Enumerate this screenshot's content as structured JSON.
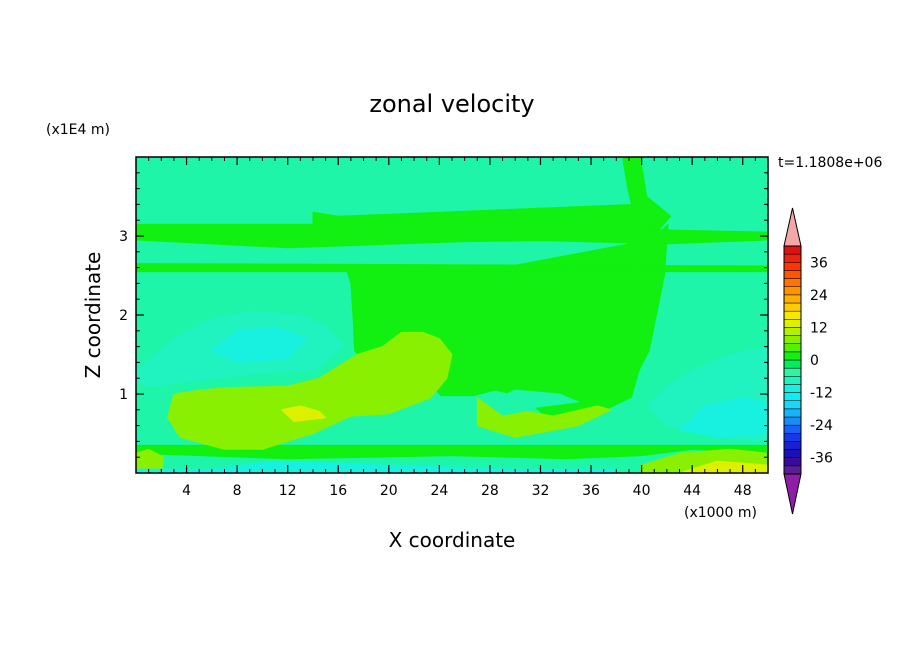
{
  "chart_data": {
    "type": "heatmap",
    "title": "zonal velocity",
    "xlabel": "X coordinate",
    "ylabel": "Z coordinate",
    "x_unit_label": "(x1000 m)",
    "y_unit_label": "(x1E4 m)",
    "time_label": "t=1.1808e+06",
    "xlim": [
      0,
      50
    ],
    "ylim": [
      0,
      4
    ],
    "x_ticks": [
      "4",
      "8",
      "12",
      "16",
      "20",
      "24",
      "28",
      "32",
      "36",
      "40",
      "44",
      "48"
    ],
    "y_ticks": [
      "1",
      "2",
      "3"
    ],
    "colorbar": {
      "levels": [
        -42,
        -39,
        -36,
        -33,
        -30,
        -27,
        -24,
        -21,
        -18,
        -15,
        -12,
        -9,
        -6,
        -3,
        0,
        3,
        6,
        9,
        12,
        15,
        18,
        21,
        24,
        27,
        30,
        33,
        36,
        39,
        42
      ],
      "colors": [
        "#5a1f96",
        "#3a0a9a",
        "#1a10b5",
        "#1820d2",
        "#1638e8",
        "#1a60f5",
        "#1a8cf8",
        "#18b4fa",
        "#1ad6fa",
        "#10ecf4",
        "#18f0e0",
        "#20f2c0",
        "#30f5a0",
        "#00ee5a",
        "#11f011",
        "#55f000",
        "#88f000",
        "#b4f000",
        "#dcf000",
        "#f8e800",
        "#ffcc00",
        "#ffb000",
        "#ff9400",
        "#ff7400",
        "#ff5400",
        "#ff3400",
        "#ee2210",
        "#e01010"
      ],
      "under_color": "#8e1ea4",
      "over_color": "#f2a8a8",
      "tick_labels": [
        "36",
        "24",
        "12",
        "0",
        "-12",
        "-24",
        "-36"
      ]
    },
    "regions": [
      {
        "value": -4,
        "color": "#1ef5a8",
        "desc": "background"
      },
      {
        "value": 0,
        "color": "#11f011",
        "points": [
          [
            14.6,
            4
          ],
          [
            39.9,
            4
          ],
          [
            40.4,
            3.5
          ],
          [
            42.3,
            3.25
          ],
          [
            40.7,
            2.95
          ],
          [
            29,
            2.6
          ],
          [
            16.7,
            2.55
          ],
          [
            17,
            2.4
          ],
          [
            17.2,
            1.9
          ],
          [
            17.3,
            1.55
          ],
          [
            18,
            1.4
          ],
          [
            19.4,
            1.3
          ],
          [
            20.5,
            1.25
          ],
          [
            21.8,
            1.35
          ],
          [
            22.8,
            1.25
          ],
          [
            24.1,
            0.98
          ],
          [
            26.7,
            0.98
          ],
          [
            28.4,
            1.05
          ],
          [
            30.6,
            0.97
          ],
          [
            32.4,
            0.72
          ],
          [
            35.5,
            0.7
          ],
          [
            37.4,
            0.82
          ],
          [
            39.2,
            0.96
          ],
          [
            39.8,
            1.3
          ],
          [
            40.6,
            1.55
          ],
          [
            41.3,
            2.1
          ],
          [
            41.8,
            2.5
          ],
          [
            42.1,
            3.15
          ],
          [
            40.5,
            2.9
          ],
          [
            39.6,
            3.15
          ],
          [
            38.9,
            3.6
          ],
          [
            38.5,
            4
          ]
        ]
      },
      {
        "value": 0,
        "color": "#11f011",
        "points": [
          [
            14,
            3.3
          ],
          [
            16,
            3.25
          ],
          [
            39.5,
            3.4
          ],
          [
            41,
            3.3
          ],
          [
            40.5,
            3.05
          ],
          [
            36,
            2.95
          ],
          [
            27,
            2.93
          ],
          [
            18,
            2.95
          ],
          [
            14,
            3.15
          ]
        ]
      },
      {
        "value": 0,
        "color": "#11f011",
        "points": [
          [
            0,
            3.15
          ],
          [
            20,
            3.15
          ],
          [
            50,
            3.05
          ],
          [
            50,
            2.95
          ],
          [
            42,
            2.9
          ],
          [
            30,
            2.95
          ],
          [
            12,
            2.85
          ],
          [
            0,
            2.95
          ]
        ]
      },
      {
        "value": 0,
        "color": "#11f011",
        "points": [
          [
            0,
            2.65
          ],
          [
            50,
            2.62
          ],
          [
            50,
            2.55
          ],
          [
            0,
            2.55
          ]
        ]
      },
      {
        "value": 0,
        "color": "#11f011",
        "points": [
          [
            0,
            0.35
          ],
          [
            50,
            0.35
          ],
          [
            50,
            0.25
          ],
          [
            44,
            0.3
          ],
          [
            40,
            0.22
          ],
          [
            34,
            0.18
          ],
          [
            25,
            0.22
          ],
          [
            12,
            0.18
          ],
          [
            0,
            0.25
          ]
        ]
      },
      {
        "value": -4,
        "color": "#1ef5a8",
        "points": [
          [
            30,
            1.05
          ],
          [
            33.5,
            1.0
          ],
          [
            35,
            0.9
          ],
          [
            31,
            0.82
          ],
          [
            28,
            0.9
          ]
        ]
      },
      {
        "value": 6,
        "color": "#88f000",
        "points": [
          [
            3,
            1.0
          ],
          [
            5,
            1.05
          ],
          [
            7,
            1.08
          ],
          [
            12,
            1.1
          ],
          [
            14.5,
            1.2
          ],
          [
            16,
            1.35
          ],
          [
            17.5,
            1.5
          ],
          [
            18.5,
            1.55
          ],
          [
            19.5,
            1.6
          ],
          [
            21,
            1.78
          ],
          [
            22.7,
            1.78
          ],
          [
            24,
            1.7
          ],
          [
            25,
            1.5
          ],
          [
            24.6,
            1.2
          ],
          [
            23.3,
            0.95
          ],
          [
            20,
            0.75
          ],
          [
            17,
            0.72
          ],
          [
            14,
            0.5
          ],
          [
            10,
            0.3
          ],
          [
            7,
            0.3
          ],
          [
            3.5,
            0.45
          ],
          [
            2.5,
            0.7
          ]
        ]
      },
      {
        "value": 6,
        "color": "#88f000",
        "points": [
          [
            27,
            0.95
          ],
          [
            29,
            0.72
          ],
          [
            31,
            0.78
          ],
          [
            33,
            0.72
          ],
          [
            36.5,
            0.85
          ],
          [
            37.6,
            0.8
          ],
          [
            35,
            0.6
          ],
          [
            30,
            0.45
          ],
          [
            27,
            0.6
          ]
        ]
      },
      {
        "value": 6,
        "color": "#88f000",
        "points": [
          [
            0,
            0
          ],
          [
            2,
            0
          ],
          [
            2.2,
            0.2
          ],
          [
            1,
            0.3
          ],
          [
            0,
            0.25
          ]
        ]
      },
      {
        "value": 6,
        "color": "#88f000",
        "points": [
          [
            40,
            0
          ],
          [
            50,
            0
          ],
          [
            50,
            0.25
          ],
          [
            47,
            0.3
          ],
          [
            43,
            0.25
          ],
          [
            40,
            0.1
          ]
        ]
      },
      {
        "value": 12,
        "color": "#dcf000",
        "points": [
          [
            11.5,
            0.8
          ],
          [
            13,
            0.85
          ],
          [
            14.5,
            0.78
          ],
          [
            15,
            0.7
          ],
          [
            12.5,
            0.65
          ]
        ]
      },
      {
        "value": 12,
        "color": "#dcf000",
        "points": [
          [
            43,
            0
          ],
          [
            50,
            0
          ],
          [
            50,
            0.1
          ],
          [
            46,
            0.15
          ]
        ]
      },
      {
        "value": -9,
        "color": "#20f2c0",
        "points": [
          [
            0,
            1.3
          ],
          [
            3,
            1.7
          ],
          [
            6,
            1.95
          ],
          [
            9,
            2.05
          ],
          [
            13,
            2.0
          ],
          [
            15,
            1.85
          ],
          [
            16.5,
            1.6
          ],
          [
            14,
            1.3
          ],
          [
            9,
            1.25
          ],
          [
            4,
            1.15
          ],
          [
            1,
            1.1
          ],
          [
            0,
            1.15
          ]
        ]
      },
      {
        "value": -9,
        "color": "#20f2c0",
        "points": [
          [
            40.5,
            0.85
          ],
          [
            42,
            1.1
          ],
          [
            44,
            1.3
          ],
          [
            47,
            1.5
          ],
          [
            50,
            1.6
          ],
          [
            50,
            0.4
          ],
          [
            46,
            0.45
          ],
          [
            42,
            0.6
          ]
        ]
      },
      {
        "value": -12,
        "color": "#18f0e0",
        "points": [
          [
            6,
            1.55
          ],
          [
            8,
            1.8
          ],
          [
            11,
            1.85
          ],
          [
            13.5,
            1.7
          ],
          [
            12,
            1.45
          ],
          [
            8,
            1.4
          ]
        ]
      },
      {
        "value": -12,
        "color": "#18f0e0",
        "points": [
          [
            43,
            0.55
          ],
          [
            45,
            0.85
          ],
          [
            48,
            0.95
          ],
          [
            50,
            0.9
          ],
          [
            50,
            0.5
          ],
          [
            46,
            0.45
          ]
        ]
      },
      {
        "value": -12,
        "color": "#18f0e0",
        "points": [
          [
            0,
            0.05
          ],
          [
            6,
            0.05
          ],
          [
            11,
            0.15
          ],
          [
            20,
            0.1
          ],
          [
            30,
            0.05
          ],
          [
            38,
            0.05
          ],
          [
            38,
            0
          ],
          [
            0,
            0
          ]
        ]
      }
    ]
  }
}
